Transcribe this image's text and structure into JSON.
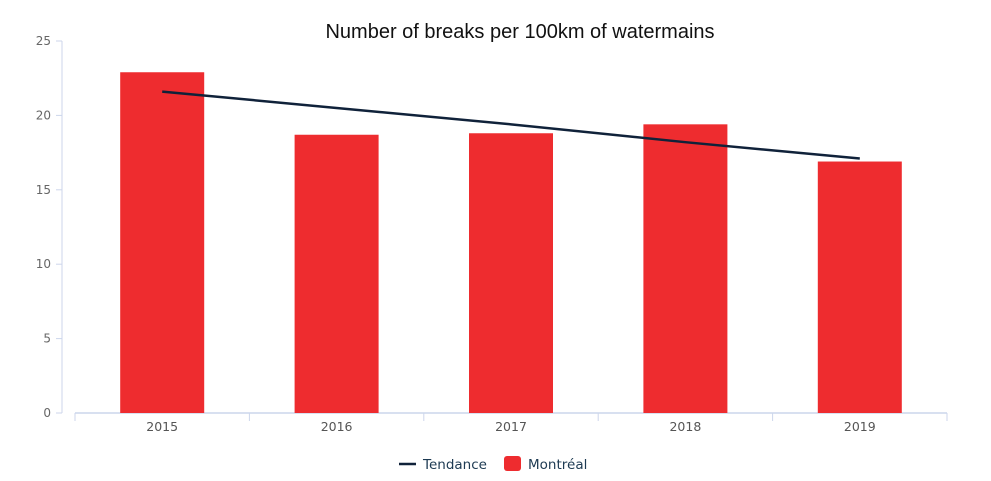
{
  "chart_data": {
    "type": "bar",
    "title": "Number of breaks per 100km of watermains",
    "xlabel": "",
    "ylabel": "",
    "categories": [
      "2015",
      "2016",
      "2017",
      "2018",
      "2019"
    ],
    "ylim": [
      0,
      25
    ],
    "yticks": [
      0,
      5,
      10,
      15,
      20,
      25
    ],
    "grid": false,
    "legend_position": "bottom-center",
    "series": [
      {
        "name": "Montréal",
        "type": "bar",
        "color": "#ee2c2f",
        "values": [
          22.9,
          18.7,
          18.8,
          19.4,
          16.9
        ]
      },
      {
        "name": "Tendance",
        "type": "line",
        "color": "#10223a",
        "values": [
          21.6,
          20.5,
          19.4,
          18.2,
          17.1
        ]
      }
    ]
  }
}
